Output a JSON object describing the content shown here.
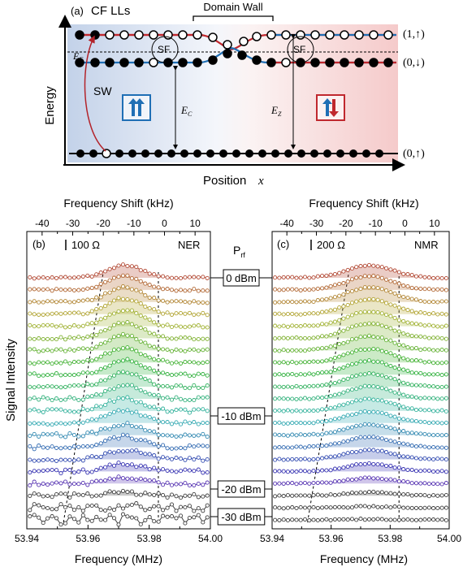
{
  "panel_a": {
    "label": "(a)",
    "title": "CF LLs",
    "domain_wall": "Domain Wall",
    "ylabel": "Energy",
    "xlabel": "Position",
    "xlabel_var": "x",
    "ef_label": "E",
    "ef_sub": "F",
    "ec_label": "E",
    "ec_sub": "C",
    "ez_label": "E",
    "ez_sub": "Z",
    "sw_label": "SW",
    "sf_label": "SF",
    "levels": [
      "(1,↑)",
      "(0,↓)",
      "(0,↑)"
    ],
    "colors": {
      "spin_up": "#1f6fb5",
      "spin_down": "#c0282e",
      "bg_left": "#c9d6ea",
      "bg_right": "#f6d0d0"
    }
  },
  "panel_b": {
    "label": "(b)",
    "scale_label": "100 Ω",
    "tag": "NER",
    "top_axis_label": "Frequency Shift (kHz)",
    "bottom_axis_label": "Frequency (MHz)",
    "top_ticks": [
      "-40",
      "-30",
      "-20",
      "-10",
      "0",
      "10"
    ],
    "bottom_ticks": [
      "53.94",
      "53.96",
      "53.98",
      "54.00"
    ]
  },
  "panel_c": {
    "label": "(c)",
    "scale_label": "200 Ω",
    "tag": "NMR",
    "top_axis_label": "Frequency Shift (kHz)",
    "bottom_axis_label": "Frequency (MHz)",
    "top_ticks": [
      "-40",
      "-30",
      "-20",
      "-10",
      "0",
      "10"
    ],
    "bottom_ticks": [
      "53.94",
      "53.96",
      "53.98",
      "54.00"
    ]
  },
  "shared": {
    "ylabel": "Signal Intensity",
    "prf_label": "P",
    "prf_sub": "rf",
    "power_labels": [
      "0 dBm",
      "-10 dBm",
      "-20 dBm",
      "-30 dBm"
    ]
  },
  "chart_data": [
    {
      "type": "line",
      "panel": "b",
      "tag": "NER",
      "x_unit": "MHz",
      "xlim": [
        53.94,
        54.0
      ],
      "x2_unit": "kHz",
      "x2lim": [
        -45,
        15
      ],
      "series_count": 21,
      "peak_center": 53.972,
      "peak_width": 0.008,
      "peak_amplitudes": [
        1.1,
        1.2,
        1.3,
        1.4,
        1.4,
        1.4,
        1.35,
        1.3,
        1.3,
        1.25,
        1.2,
        1.15,
        1.1,
        1.0,
        0.95,
        0.85,
        0.7,
        0.55,
        0.3,
        0.15,
        0.05
      ],
      "noise_levels": [
        0.25,
        0.25,
        0.25,
        0.28,
        0.28,
        0.28,
        0.3,
        0.3,
        0.32,
        0.35,
        0.4,
        0.45,
        0.45,
        0.45,
        0.45,
        0.45,
        0.5,
        0.5,
        0.55,
        0.9,
        1.3
      ],
      "dashed_lines": [
        [
          53.952,
          53.965
        ],
        [
          53.983,
          53.983
        ]
      ]
    },
    {
      "type": "line",
      "panel": "c",
      "tag": "NMR",
      "x_unit": "MHz",
      "xlim": [
        53.94,
        54.0
      ],
      "x2_unit": "kHz",
      "x2lim": [
        -45,
        15
      ],
      "series_count": 21,
      "peak_center": 53.973,
      "peak_width": 0.011,
      "peak_amplitudes": [
        1.1,
        1.2,
        1.3,
        1.3,
        1.3,
        1.3,
        1.25,
        1.2,
        1.2,
        1.15,
        1.1,
        1.05,
        1.0,
        0.95,
        0.9,
        0.8,
        0.7,
        0.5,
        0.3,
        0.1,
        0.05
      ],
      "noise_levels": [
        0.15,
        0.15,
        0.15,
        0.15,
        0.15,
        0.15,
        0.15,
        0.15,
        0.15,
        0.15,
        0.15,
        0.15,
        0.15,
        0.15,
        0.15,
        0.15,
        0.15,
        0.15,
        0.15,
        0.15,
        0.15
      ],
      "dashed_lines": [
        [
          53.952,
          53.966
        ],
        [
          53.983,
          53.983
        ]
      ]
    }
  ]
}
